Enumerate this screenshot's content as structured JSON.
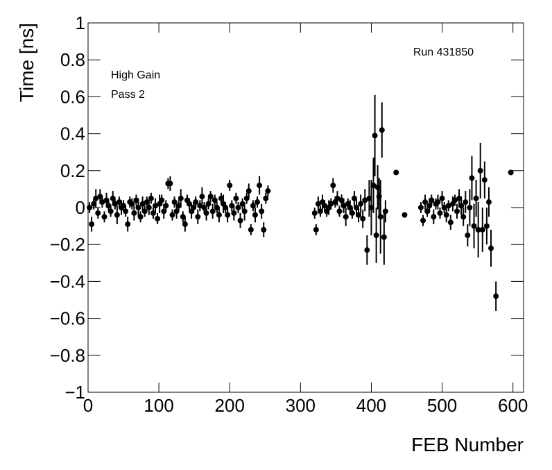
{
  "chart_data": {
    "type": "scatter",
    "xlabel": "FEB Number",
    "ylabel": "Time [ns]",
    "annotations": [
      "Run 431850",
      "High Gain",
      "Pass 2"
    ],
    "xlim": [
      0,
      615
    ],
    "ylim": [
      -1,
      1
    ],
    "xticks": [
      0,
      100,
      200,
      300,
      400,
      500,
      600
    ],
    "yticks": [
      {
        "value": -1,
        "label": "−1"
      },
      {
        "value": -0.8,
        "label": "−0.8"
      },
      {
        "value": -0.6,
        "label": "−0.6"
      },
      {
        "value": -0.4,
        "label": "−0.4"
      },
      {
        "value": -0.2,
        "label": "−0.2"
      },
      0,
      0.2,
      0.4,
      0.6,
      0.8,
      1
    ],
    "color": "#000000",
    "x": [
      2,
      5,
      8,
      11,
      14,
      17,
      20,
      23,
      26,
      29,
      32,
      35,
      38,
      41,
      44,
      47,
      50,
      53,
      56,
      59,
      62,
      65,
      68,
      71,
      74,
      77,
      80,
      83,
      86,
      89,
      92,
      95,
      98,
      101,
      104,
      107,
      110,
      113,
      116,
      119,
      122,
      125,
      128,
      131,
      134,
      137,
      140,
      143,
      146,
      149,
      152,
      155,
      158,
      161,
      164,
      167,
      170,
      173,
      176,
      179,
      182,
      185,
      188,
      191,
      194,
      197,
      200,
      203,
      206,
      209,
      212,
      215,
      218,
      221,
      224,
      227,
      230,
      233,
      236,
      239,
      242,
      245,
      248,
      251,
      254,
      320,
      322,
      325,
      328,
      331,
      334,
      337,
      340,
      343,
      346,
      349,
      352,
      355,
      358,
      361,
      364,
      367,
      370,
      373,
      376,
      379,
      382,
      385,
      388,
      391,
      394,
      397,
      400,
      403,
      405,
      407,
      409,
      411,
      413,
      415,
      418,
      420,
      435,
      447,
      470,
      473,
      476,
      479,
      482,
      485,
      488,
      491,
      494,
      497,
      500,
      503,
      506,
      509,
      512,
      515,
      518,
      521,
      524,
      527,
      530,
      533,
      536,
      539,
      542,
      545,
      548,
      551,
      554,
      557,
      560,
      563,
      566,
      569,
      576,
      597
    ],
    "y": [
      0,
      -0.09,
      0.02,
      0.05,
      -0.03,
      0.06,
      0.03,
      -0.05,
      0.04,
      0.01,
      -0.02,
      0.05,
      0.02,
      -0.04,
      0.03,
      0,
      0.01,
      -0.02,
      -0.09,
      0.03,
      0.02,
      -0.03,
      0.04,
      0,
      -0.05,
      0.02,
      -0.02,
      0.03,
      0,
      0.05,
      -0.03,
      0.01,
      -0.06,
      0.02,
      0.04,
      -0.02,
      0.01,
      0.13,
      0.13,
      -0.04,
      0.03,
      -0.02,
      0.01,
      0.05,
      -0.05,
      -0.09,
      0.04,
      0.02,
      -0.02,
      0,
      0.03,
      -0.05,
      0.01,
      0.06,
      0,
      -0.03,
      0.02,
      0.06,
      -0.02,
      0.04,
      0,
      -0.04,
      0.05,
      0.02,
      0,
      -0.04,
      0.12,
      0.01,
      -0.03,
      0.05,
      0,
      -0.07,
      0.02,
      -0.02,
      0.05,
      0.09,
      -0.12,
      0.01,
      -0.04,
      0.03,
      0.12,
      -0.02,
      -0.12,
      0.05,
      0.09,
      -0.03,
      -0.12,
      0.02,
      -0.02,
      0.03,
      0.01,
      -0.02,
      0,
      0.02,
      0.12,
      0.03,
      0.05,
      -0.02,
      0.04,
      0.01,
      -0.05,
      0.02,
      0,
      -0.03,
      0.05,
      0,
      -0.04,
      0.02,
      -0.06,
      0.04,
      -0.23,
      0.05,
      0,
      0.12,
      0.39,
      -0.15,
      0.11,
      0.06,
      -0.05,
      0.42,
      -0.16,
      -0.02,
      0.19,
      -0.04,
      0,
      -0.07,
      0.03,
      -0.02,
      0.01,
      0.04,
      -0.05,
      0.02,
      0.03,
      -0.03,
      0.05,
      0,
      -0.04,
      0.01,
      -0.08,
      0.02,
      0.04,
      -0.02,
      0.05,
      0.01,
      -0.05,
      0.03,
      -0.15,
      0,
      0.16,
      -0.1,
      0.05,
      -0.12,
      0.2,
      -0.12,
      0.15,
      -0.1,
      0.03,
      -0.22,
      -0.48,
      0.19
    ],
    "yerr": [
      0.03,
      0.04,
      0.03,
      0.05,
      0.03,
      0.04,
      0.03,
      0.03,
      0.04,
      0.03,
      0.03,
      0.04,
      0.03,
      0.05,
      0.03,
      0.04,
      0.03,
      0.03,
      0.04,
      0.03,
      0.03,
      0.04,
      0.03,
      0.05,
      0.03,
      0.04,
      0.03,
      0.03,
      0.04,
      0.03,
      0.03,
      0.04,
      0.03,
      0.05,
      0.03,
      0.04,
      0.03,
      0.03,
      0.04,
      0.03,
      0.03,
      0.04,
      0.03,
      0.05,
      0.03,
      0.04,
      0.03,
      0.03,
      0.04,
      0.03,
      0.03,
      0.04,
      0.03,
      0.05,
      0.03,
      0.04,
      0.03,
      0.03,
      0.04,
      0.03,
      0.03,
      0.04,
      0.03,
      0.05,
      0.03,
      0.04,
      0.03,
      0.03,
      0.04,
      0.03,
      0.03,
      0.04,
      0.03,
      0.05,
      0.03,
      0.04,
      0.03,
      0.03,
      0.04,
      0.03,
      0.05,
      0.04,
      0.04,
      0.03,
      0.03,
      0.03,
      0.03,
      0.04,
      0.03,
      0.04,
      0.03,
      0.03,
      0.04,
      0.03,
      0.04,
      0.03,
      0.04,
      0.03,
      0.03,
      0.04,
      0.05,
      0.03,
      0.04,
      0.03,
      0.04,
      0.05,
      0.04,
      0.05,
      0.05,
      0.06,
      0.08,
      0.1,
      0.15,
      0.15,
      0.22,
      0.15,
      0.12,
      0.1,
      0.2,
      0.15,
      0.15,
      0.06,
      0.005,
      0.005,
      0.03,
      0.03,
      0.04,
      0.03,
      0.04,
      0.03,
      0.04,
      0.03,
      0.04,
      0.03,
      0.04,
      0.03,
      0.04,
      0.03,
      0.04,
      0.04,
      0.03,
      0.04,
      0.05,
      0.05,
      0.05,
      0.06,
      0.06,
      0.1,
      0.12,
      0.12,
      0.1,
      0.15,
      0.15,
      0.12,
      0.1,
      0.1,
      0.08,
      0.1,
      0.08,
      0.005
    ]
  }
}
